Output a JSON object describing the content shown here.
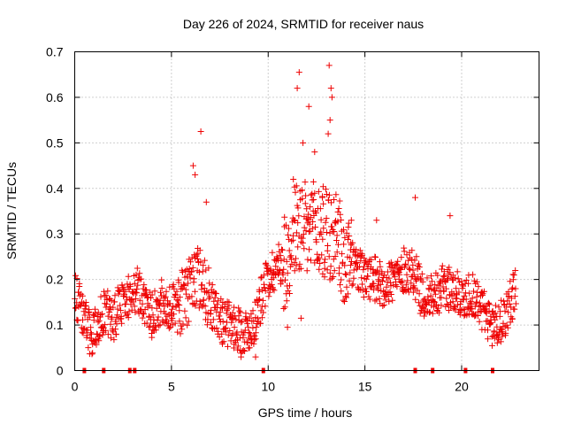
{
  "chart_data": {
    "type": "scatter",
    "title": "Day 226 of 2024, SRMTID for receiver naus",
    "xlabel": "GPS time / hours",
    "ylabel": "SRMTID / TECUs",
    "xlim": [
      0,
      24
    ],
    "ylim": [
      0,
      0.7
    ],
    "x_ticks": [
      0,
      5,
      10,
      15,
      20
    ],
    "x_tick_labels": [
      "0",
      "5",
      "10",
      "15",
      "20"
    ],
    "y_ticks": [
      0,
      0.1,
      0.2,
      0.3,
      0.4,
      0.5,
      0.6,
      0.7
    ],
    "y_tick_labels": [
      "0",
      "0.1",
      "0.2",
      "0.3",
      "0.4",
      "0.5",
      "0.6",
      "0.7"
    ],
    "grid": true,
    "marker": "+",
    "color": "#ee0000",
    "data_gap_markers_x": [
      0.5,
      1.5,
      2.85,
      3.1,
      9.75,
      17.6,
      18.5,
      20.2,
      21.6
    ],
    "profile": [
      {
        "t": 0.0,
        "y": 0.17
      },
      {
        "t": 0.3,
        "y": 0.14
      },
      {
        "t": 0.5,
        "y": 0.12
      },
      {
        "t": 0.8,
        "y": 0.08
      },
      {
        "t": 1.0,
        "y": 0.09
      },
      {
        "t": 1.3,
        "y": 0.12
      },
      {
        "t": 1.7,
        "y": 0.13
      },
      {
        "t": 2.0,
        "y": 0.11
      },
      {
        "t": 2.4,
        "y": 0.15
      },
      {
        "t": 2.8,
        "y": 0.16
      },
      {
        "t": 3.2,
        "y": 0.18
      },
      {
        "t": 3.6,
        "y": 0.14
      },
      {
        "t": 4.0,
        "y": 0.12
      },
      {
        "t": 4.5,
        "y": 0.15
      },
      {
        "t": 5.0,
        "y": 0.14
      },
      {
        "t": 5.5,
        "y": 0.15
      },
      {
        "t": 6.0,
        "y": 0.18
      },
      {
        "t": 6.5,
        "y": 0.21
      },
      {
        "t": 7.0,
        "y": 0.15
      },
      {
        "t": 7.5,
        "y": 0.11
      },
      {
        "t": 8.0,
        "y": 0.1
      },
      {
        "t": 8.5,
        "y": 0.09
      },
      {
        "t": 9.0,
        "y": 0.08
      },
      {
        "t": 9.4,
        "y": 0.12
      },
      {
        "t": 10.0,
        "y": 0.21
      },
      {
        "t": 10.5,
        "y": 0.23
      },
      {
        "t": 11.0,
        "y": 0.25
      },
      {
        "t": 11.5,
        "y": 0.32
      },
      {
        "t": 12.0,
        "y": 0.3
      },
      {
        "t": 12.5,
        "y": 0.31
      },
      {
        "t": 13.0,
        "y": 0.3
      },
      {
        "t": 13.5,
        "y": 0.28
      },
      {
        "t": 14.0,
        "y": 0.24
      },
      {
        "t": 14.5,
        "y": 0.23
      },
      {
        "t": 15.0,
        "y": 0.2
      },
      {
        "t": 15.5,
        "y": 0.2
      },
      {
        "t": 16.0,
        "y": 0.19
      },
      {
        "t": 16.5,
        "y": 0.2
      },
      {
        "t": 17.0,
        "y": 0.22
      },
      {
        "t": 17.5,
        "y": 0.22
      },
      {
        "t": 18.0,
        "y": 0.16
      },
      {
        "t": 18.5,
        "y": 0.17
      },
      {
        "t": 19.0,
        "y": 0.18
      },
      {
        "t": 19.5,
        "y": 0.18
      },
      {
        "t": 20.0,
        "y": 0.16
      },
      {
        "t": 20.5,
        "y": 0.17
      },
      {
        "t": 21.0,
        "y": 0.14
      },
      {
        "t": 21.5,
        "y": 0.1
      },
      {
        "t": 22.0,
        "y": 0.1
      },
      {
        "t": 22.5,
        "y": 0.15
      },
      {
        "t": 22.8,
        "y": 0.18
      }
    ],
    "spikes": [
      {
        "x": 6.12,
        "y": 0.45
      },
      {
        "x": 6.22,
        "y": 0.43
      },
      {
        "x": 6.52,
        "y": 0.525
      },
      {
        "x": 6.8,
        "y": 0.37
      },
      {
        "x": 11.6,
        "y": 0.655
      },
      {
        "x": 11.5,
        "y": 0.62
      },
      {
        "x": 12.1,
        "y": 0.58
      },
      {
        "x": 12.4,
        "y": 0.48
      },
      {
        "x": 13.15,
        "y": 0.67
      },
      {
        "x": 13.25,
        "y": 0.62
      },
      {
        "x": 13.3,
        "y": 0.6
      },
      {
        "x": 13.2,
        "y": 0.55
      },
      {
        "x": 13.1,
        "y": 0.52
      },
      {
        "x": 11.8,
        "y": 0.5
      },
      {
        "x": 11.3,
        "y": 0.42
      },
      {
        "x": 12.8,
        "y": 0.38
      },
      {
        "x": 17.6,
        "y": 0.38
      },
      {
        "x": 19.4,
        "y": 0.34
      },
      {
        "x": 15.6,
        "y": 0.33
      },
      {
        "x": 14.3,
        "y": 0.33
      },
      {
        "x": 9.35,
        "y": 0.03
      },
      {
        "x": 8.6,
        "y": 0.03
      },
      {
        "x": 11.0,
        "y": 0.095
      },
      {
        "x": 11.7,
        "y": 0.115
      }
    ],
    "samples_per_hour": 56
  }
}
